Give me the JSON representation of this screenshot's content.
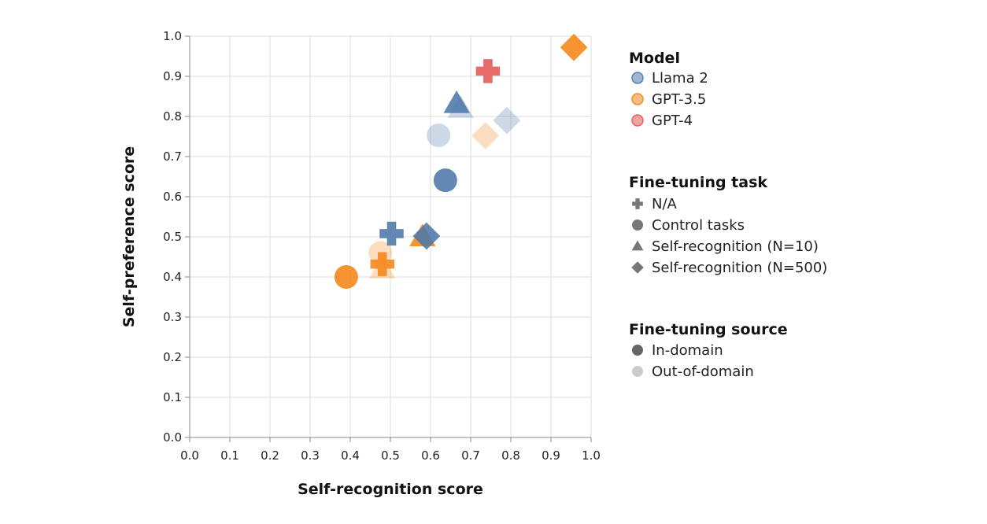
{
  "chart_data": {
    "type": "scatter",
    "xlabel": "Self-recognition score",
    "ylabel": "Self-preference score",
    "xlim": [
      0,
      1
    ],
    "ylim": [
      0,
      1
    ],
    "x_ticks": [
      "0.0",
      "0.1",
      "0.2",
      "0.3",
      "0.4",
      "0.5",
      "0.6",
      "0.7",
      "0.8",
      "0.9",
      "1.0"
    ],
    "y_ticks": [
      "0.0",
      "0.1",
      "0.2",
      "0.3",
      "0.4",
      "0.5",
      "0.6",
      "0.7",
      "0.8",
      "0.9",
      "1.0"
    ],
    "grid": true,
    "legend_position": "right",
    "colors": {
      "Llama 2": "#4c78a8",
      "GPT-3.5": "#f58518",
      "GPT-4": "#e45756"
    },
    "legends": [
      {
        "title": "Model",
        "kind": "model",
        "entries": [
          {
            "label": "Llama 2",
            "shape": "circle",
            "model": "Llama 2"
          },
          {
            "label": "GPT-3.5",
            "shape": "circle",
            "model": "GPT-3.5"
          },
          {
            "label": "GPT-4",
            "shape": "circle",
            "model": "GPT-4"
          }
        ]
      },
      {
        "title": "Fine-tuning task",
        "kind": "task",
        "entries": [
          {
            "label": "N/A",
            "shape": "cross"
          },
          {
            "label": "Control tasks",
            "shape": "circle"
          },
          {
            "label": "Self-recognition (N=10)",
            "shape": "triangle"
          },
          {
            "label": "Self-recognition (N=500)",
            "shape": "diamond"
          }
        ]
      },
      {
        "title": "Fine-tuning source",
        "kind": "source",
        "entries": [
          {
            "label": "In-domain",
            "shape": "circle",
            "source": "in"
          },
          {
            "label": "Out-of-domain",
            "shape": "circle",
            "source": "out"
          }
        ]
      }
    ],
    "points": [
      {
        "model": "GPT-3.5",
        "shape": "triangle",
        "source": "out",
        "x": 0.48,
        "y": 0.42
      },
      {
        "model": "GPT-3.5",
        "shape": "circle",
        "source": "out",
        "x": 0.475,
        "y": 0.46
      },
      {
        "model": "Llama 2",
        "shape": "circle",
        "source": "out",
        "x": 0.62,
        "y": 0.753
      },
      {
        "model": "Llama 2",
        "shape": "triangle",
        "source": "out",
        "x": 0.675,
        "y": 0.82
      },
      {
        "model": "Llama 2",
        "shape": "diamond",
        "source": "out",
        "x": 0.79,
        "y": 0.79
      },
      {
        "model": "GPT-3.5",
        "shape": "diamond",
        "source": "out",
        "x": 0.737,
        "y": 0.752
      },
      {
        "model": "GPT-3.5",
        "shape": "circle",
        "source": "in",
        "x": 0.39,
        "y": 0.4
      },
      {
        "model": "GPT-3.5",
        "shape": "cross",
        "source": "in",
        "x": 0.48,
        "y": 0.432
      },
      {
        "model": "GPT-3.5",
        "shape": "triangle",
        "source": "in",
        "x": 0.58,
        "y": 0.5
      },
      {
        "model": "Llama 2",
        "shape": "cross",
        "source": "in",
        "x": 0.503,
        "y": 0.508
      },
      {
        "model": "Llama 2",
        "shape": "diamond",
        "source": "in",
        "x": 0.59,
        "y": 0.502
      },
      {
        "model": "Llama 2",
        "shape": "circle",
        "source": "in",
        "x": 0.637,
        "y": 0.641
      },
      {
        "model": "Llama 2",
        "shape": "triangle",
        "source": "in",
        "x": 0.665,
        "y": 0.832
      },
      {
        "model": "GPT-4",
        "shape": "cross",
        "source": "in",
        "x": 0.743,
        "y": 0.913
      },
      {
        "model": "GPT-3.5",
        "shape": "diamond",
        "source": "in",
        "x": 0.957,
        "y": 0.972
      }
    ]
  }
}
